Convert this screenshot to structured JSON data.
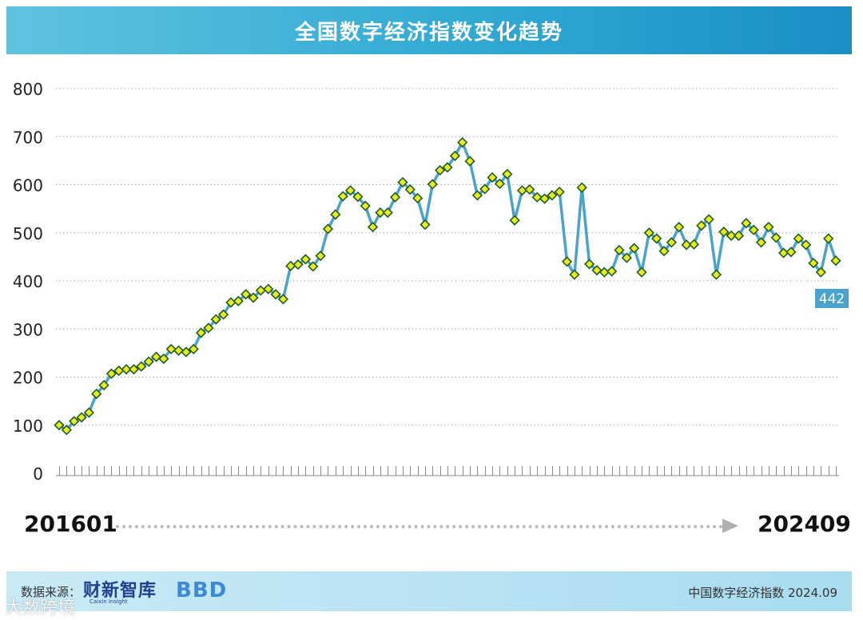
{
  "title": "全国数字经济指数变化趋势",
  "range": {
    "start": "201601",
    "end": "202409"
  },
  "footer": {
    "source_label": "数据来源：",
    "logo_caixin": "财新智库",
    "logo_caixin_sub": "Caixin Insight",
    "logo_bbd": "BBD",
    "right_text": "中国数字经济指数 2024.09"
  },
  "watermark": "大数跨境",
  "colors": {
    "line": "#4aa3cd",
    "marker_fill": "#e8ec1f",
    "marker_stroke": "#1f5b2a",
    "title_bar": "#2fa8d5",
    "label_box": "#4aa3cd"
  },
  "chart_data": {
    "type": "line",
    "title": "全国数字经济指数变化趋势",
    "xlabel": "",
    "ylabel": "",
    "ylim": [
      0,
      800
    ],
    "yticks": [
      0,
      100,
      200,
      300,
      400,
      500,
      600,
      700,
      800
    ],
    "grid": true,
    "start": "201601",
    "end": "202409",
    "end_label": "442",
    "values": [
      100,
      90,
      108,
      116,
      126,
      165,
      183,
      207,
      213,
      216,
      216,
      222,
      232,
      242,
      238,
      258,
      255,
      252,
      258,
      292,
      302,
      320,
      330,
      355,
      358,
      372,
      365,
      380,
      383,
      372,
      362,
      431,
      434,
      445,
      430,
      452,
      508,
      538,
      576,
      588,
      575,
      556,
      512,
      542,
      542,
      574,
      605,
      590,
      572,
      517,
      601,
      630,
      636,
      660,
      688,
      649,
      578,
      591,
      615,
      602,
      622,
      526,
      588,
      590,
      574,
      571,
      578,
      585,
      440,
      413,
      594,
      435,
      422,
      418,
      420,
      464,
      448,
      468,
      418,
      500,
      488,
      462,
      480,
      512,
      475,
      476,
      515,
      528,
      413,
      502,
      494,
      494,
      520,
      506,
      480,
      512,
      490,
      458,
      460,
      488,
      475,
      437,
      418,
      488,
      442
    ]
  }
}
